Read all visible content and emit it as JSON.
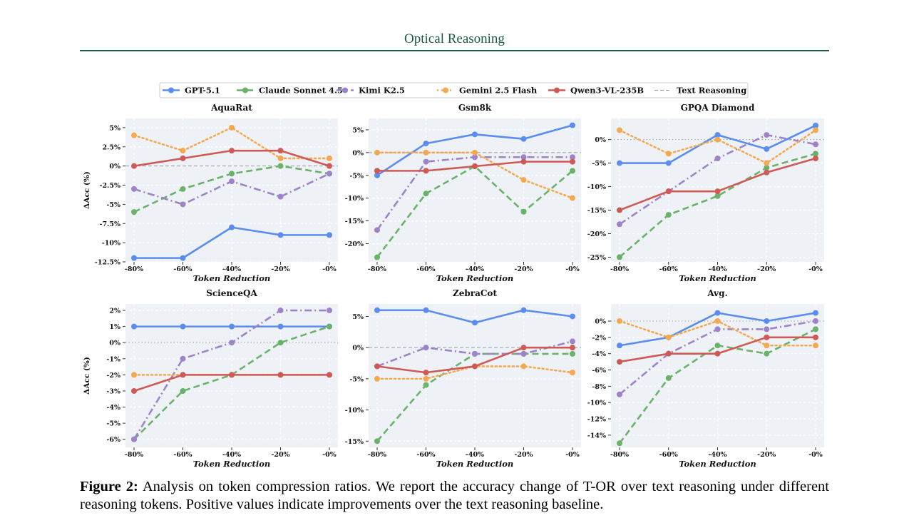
{
  "header": {
    "title": "Optical Reasoning"
  },
  "caption": {
    "label": "Figure 2:",
    "text": "Analysis on token compression ratios. We report the accuracy change of T-OR over text reasoning under different reasoning tokens. Positive values indicate improvements over the text reasoning baseline."
  },
  "legend": {
    "entries": [
      {
        "name": "GPT-5.1",
        "color": "#5b8def",
        "dash": "solid"
      },
      {
        "name": "Claude Sonnet 4.5",
        "color": "#6ab26a",
        "dash": "dashed"
      },
      {
        "name": "Kimi K2.5",
        "color": "#9d83c8",
        "dash": "dashdot"
      },
      {
        "name": "Gemini 2.5 Flash",
        "color": "#f4a950",
        "dash": "dotted"
      },
      {
        "name": "Qwen3-VL-235B",
        "color": "#cf5a55",
        "dash": "solid"
      },
      {
        "name": "Text Reasoning",
        "color": "#999999",
        "dash": "baseline"
      }
    ]
  },
  "chart_data": [
    {
      "type": "line",
      "title": "AquaRat",
      "xlabel": "Token Reduction",
      "ylabel": "ΔAcc (%)",
      "categories": [
        "-80%",
        "-60%",
        "-40%",
        "-20%",
        "-0%"
      ],
      "ylim": [
        -12.5,
        6.2
      ],
      "yticks": [
        -12.5,
        -10,
        -7.5,
        -5,
        -2.5,
        0,
        2.5,
        5
      ],
      "ytick_labels": [
        "-12.5%",
        "-10%",
        "-7.5%",
        "-5%",
        "-2.5%",
        "0%",
        "2.5%",
        "5%"
      ],
      "baseline_style": "dashed",
      "series": [
        {
          "name": "GPT-5.1",
          "values": [
            -12,
            -12,
            -8,
            -9,
            -9
          ]
        },
        {
          "name": "Claude Sonnet 4.5",
          "values": [
            -6,
            -3,
            -1,
            0,
            -1
          ]
        },
        {
          "name": "Kimi K2.5",
          "values": [
            -3,
            -5,
            -2,
            -4,
            -1
          ]
        },
        {
          "name": "Gemini 2.5 Flash",
          "values": [
            4,
            2,
            5,
            1,
            1
          ]
        },
        {
          "name": "Qwen3-VL-235B",
          "values": [
            0,
            1,
            2,
            2,
            0
          ]
        }
      ]
    },
    {
      "type": "line",
      "title": "Gsm8k",
      "xlabel": "Token Reduction",
      "ylabel": "",
      "categories": [
        "-80%",
        "-60%",
        "-40%",
        "-20%",
        "-0%"
      ],
      "ylim": [
        -24,
        7.5
      ],
      "yticks": [
        -20,
        -15,
        -10,
        -5,
        0,
        5
      ],
      "ytick_labels": [
        "-20%",
        "-15%",
        "-10%",
        "-5%",
        "0%",
        "5%"
      ],
      "baseline_style": "dashed",
      "series": [
        {
          "name": "GPT-5.1",
          "values": [
            -5,
            2,
            4,
            3,
            6
          ]
        },
        {
          "name": "Claude Sonnet 4.5",
          "values": [
            -23,
            -9,
            -3,
            -13,
            -4
          ]
        },
        {
          "name": "Kimi K2.5",
          "values": [
            -17,
            -2,
            -1,
            -1,
            -1
          ]
        },
        {
          "name": "Gemini 2.5 Flash",
          "values": [
            0,
            0,
            0,
            -6,
            -10
          ]
        },
        {
          "name": "Qwen3-VL-235B",
          "values": [
            -4,
            -4,
            -3,
            -2,
            -2
          ]
        }
      ]
    },
    {
      "type": "line",
      "title": "GPQA Diamond",
      "xlabel": "Token Reduction",
      "ylabel": "",
      "categories": [
        "-80%",
        "-60%",
        "-40%",
        "-20%",
        "-0%"
      ],
      "ylim": [
        -26,
        4.5
      ],
      "yticks": [
        -25,
        -20,
        -15,
        -10,
        -5,
        0
      ],
      "ytick_labels": [
        "-25%",
        "-20%",
        "-15%",
        "-10%",
        "-5%",
        "0%"
      ],
      "baseline_style": "dotted",
      "series": [
        {
          "name": "GPT-5.1",
          "values": [
            -5,
            -5,
            1,
            -2,
            3
          ]
        },
        {
          "name": "Claude Sonnet 4.5",
          "values": [
            -25,
            -16,
            -12,
            -6,
            -3
          ]
        },
        {
          "name": "Kimi K2.5",
          "values": [
            -18,
            -11,
            -4,
            1,
            -1
          ]
        },
        {
          "name": "Gemini 2.5 Flash",
          "values": [
            2,
            -3,
            0,
            -5,
            2
          ]
        },
        {
          "name": "Qwen3-VL-235B",
          "values": [
            -15,
            -11,
            -11,
            -7,
            -4
          ]
        }
      ]
    },
    {
      "type": "line",
      "title": "ScienceQA",
      "xlabel": "Token Reduction",
      "ylabel": "ΔAcc (%)",
      "categories": [
        "-80%",
        "-60%",
        "-40%",
        "-20%",
        "-0%"
      ],
      "ylim": [
        -6.5,
        2.4
      ],
      "yticks": [
        -6,
        -5,
        -4,
        -3,
        -2,
        -1,
        0,
        1,
        2
      ],
      "ytick_labels": [
        "-6%",
        "-5%",
        "-4%",
        "-3%",
        "-2%",
        "-1%",
        "0%",
        "1%",
        "2%"
      ],
      "baseline_style": "dotted",
      "series": [
        {
          "name": "GPT-5.1",
          "values": [
            1,
            1,
            1,
            1,
            1
          ]
        },
        {
          "name": "Claude Sonnet 4.5",
          "values": [
            -6,
            -3,
            -2,
            0,
            1
          ]
        },
        {
          "name": "Kimi K2.5",
          "values": [
            -6,
            -1,
            0,
            2,
            2
          ]
        },
        {
          "name": "Gemini 2.5 Flash",
          "values": [
            -2,
            -2,
            -2,
            -2,
            -2
          ]
        },
        {
          "name": "Qwen3-VL-235B",
          "values": [
            -3,
            -2,
            -2,
            -2,
            -2
          ]
        }
      ]
    },
    {
      "type": "line",
      "title": "ZebraCot",
      "xlabel": "Token Reduction",
      "ylabel": "",
      "categories": [
        "-80%",
        "-60%",
        "-40%",
        "-20%",
        "-0%"
      ],
      "ylim": [
        -16,
        7
      ],
      "yticks": [
        -15,
        -10,
        -5,
        0,
        5
      ],
      "ytick_labels": [
        "-15%",
        "-10%",
        "-5%",
        "0%",
        "5%"
      ],
      "baseline_style": "dashed",
      "series": [
        {
          "name": "GPT-5.1",
          "values": [
            6,
            6,
            4,
            6,
            5
          ]
        },
        {
          "name": "Claude Sonnet 4.5",
          "values": [
            -15,
            -6,
            -1,
            -1,
            -1
          ]
        },
        {
          "name": "Kimi K2.5",
          "values": [
            -3,
            0,
            -1,
            -1,
            1
          ]
        },
        {
          "name": "Gemini 2.5 Flash",
          "values": [
            -5,
            -5,
            -3,
            -3,
            -4
          ]
        },
        {
          "name": "Qwen3-VL-235B",
          "values": [
            -3,
            -4,
            -3,
            0,
            0
          ]
        }
      ]
    },
    {
      "type": "line",
      "title": "Avg.",
      "xlabel": "Token Reduction",
      "ylabel": "",
      "categories": [
        "-80%",
        "-60%",
        "-40%",
        "-20%",
        "-0%"
      ],
      "ylim": [
        -15.5,
        2.1
      ],
      "yticks": [
        -14,
        -12,
        -10,
        -8,
        -6,
        -4,
        -2,
        0
      ],
      "ytick_labels": [
        "-14%",
        "-12%",
        "-10%",
        "-8%",
        "-6%",
        "-4%",
        "-2%",
        "0%"
      ],
      "baseline_style": "dotted",
      "series": [
        {
          "name": "GPT-5.1",
          "values": [
            -3,
            -2,
            1,
            0,
            1
          ]
        },
        {
          "name": "Claude Sonnet 4.5",
          "values": [
            -15,
            -7,
            -3,
            -4,
            -1
          ]
        },
        {
          "name": "Kimi K2.5",
          "values": [
            -9,
            -4,
            -1,
            -1,
            0
          ]
        },
        {
          "name": "Gemini 2.5 Flash",
          "values": [
            0,
            -2,
            0,
            -3,
            -3
          ]
        },
        {
          "name": "Qwen3-VL-235B",
          "values": [
            -5,
            -4,
            -4,
            -2,
            -2
          ]
        }
      ]
    }
  ]
}
